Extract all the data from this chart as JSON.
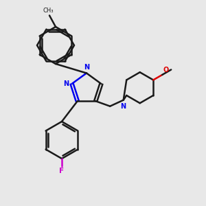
{
  "bg_color": "#e8e8e8",
  "bond_color": "#1a1a1a",
  "N_color": "#0000ee",
  "O_color": "#dd0000",
  "F_color": "#cc00cc",
  "line_width": 1.8,
  "fig_size": [
    3.0,
    3.0
  ],
  "dpi": 100,
  "xlim": [
    0,
    10
  ],
  "ylim": [
    0,
    10
  ]
}
